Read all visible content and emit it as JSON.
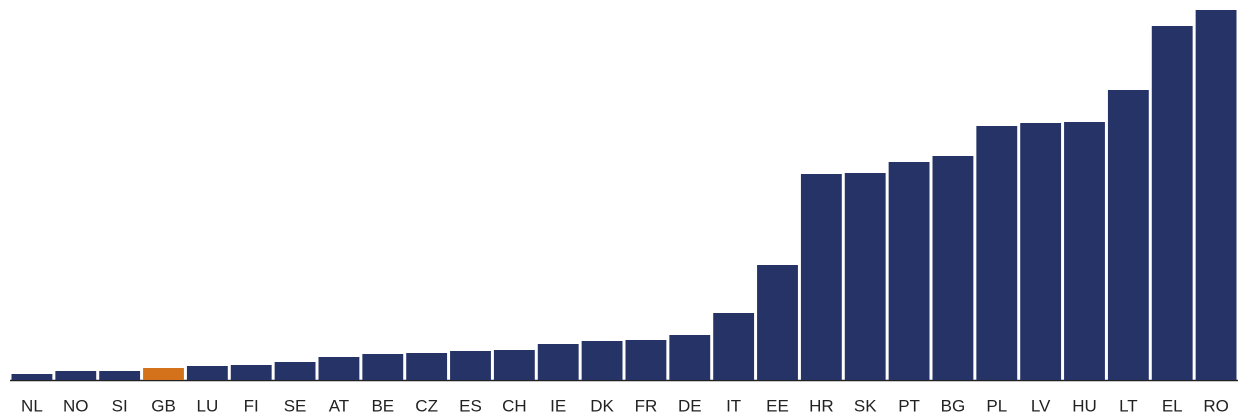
{
  "chart_data": {
    "type": "bar",
    "categories": [
      "NL",
      "NO",
      "SI",
      "GB",
      "LU",
      "FI",
      "SE",
      "AT",
      "BE",
      "CZ",
      "ES",
      "CH",
      "IE",
      "DK",
      "FR",
      "DE",
      "IT",
      "EE",
      "HR",
      "SK",
      "PT",
      "BG",
      "PL",
      "LV",
      "HU",
      "LT",
      "EL",
      "RO"
    ],
    "values": [
      6,
      9,
      9,
      12,
      14,
      15,
      18,
      23,
      26,
      27,
      29,
      30,
      36,
      39,
      40,
      45,
      67,
      115,
      206,
      207,
      218,
      224,
      254,
      257,
      258,
      290,
      354,
      370
    ],
    "colors": [
      "#263367",
      "#263367",
      "#263367",
      "#d4711b",
      "#263367",
      "#263367",
      "#263367",
      "#263367",
      "#263367",
      "#263367",
      "#263367",
      "#263367",
      "#263367",
      "#263367",
      "#263367",
      "#263367",
      "#263367",
      "#263367",
      "#263367",
      "#263367",
      "#263367",
      "#263367",
      "#263367",
      "#263367",
      "#263367",
      "#263367",
      "#263367",
      "#263367"
    ],
    "ylim": [
      0,
      370
    ]
  }
}
